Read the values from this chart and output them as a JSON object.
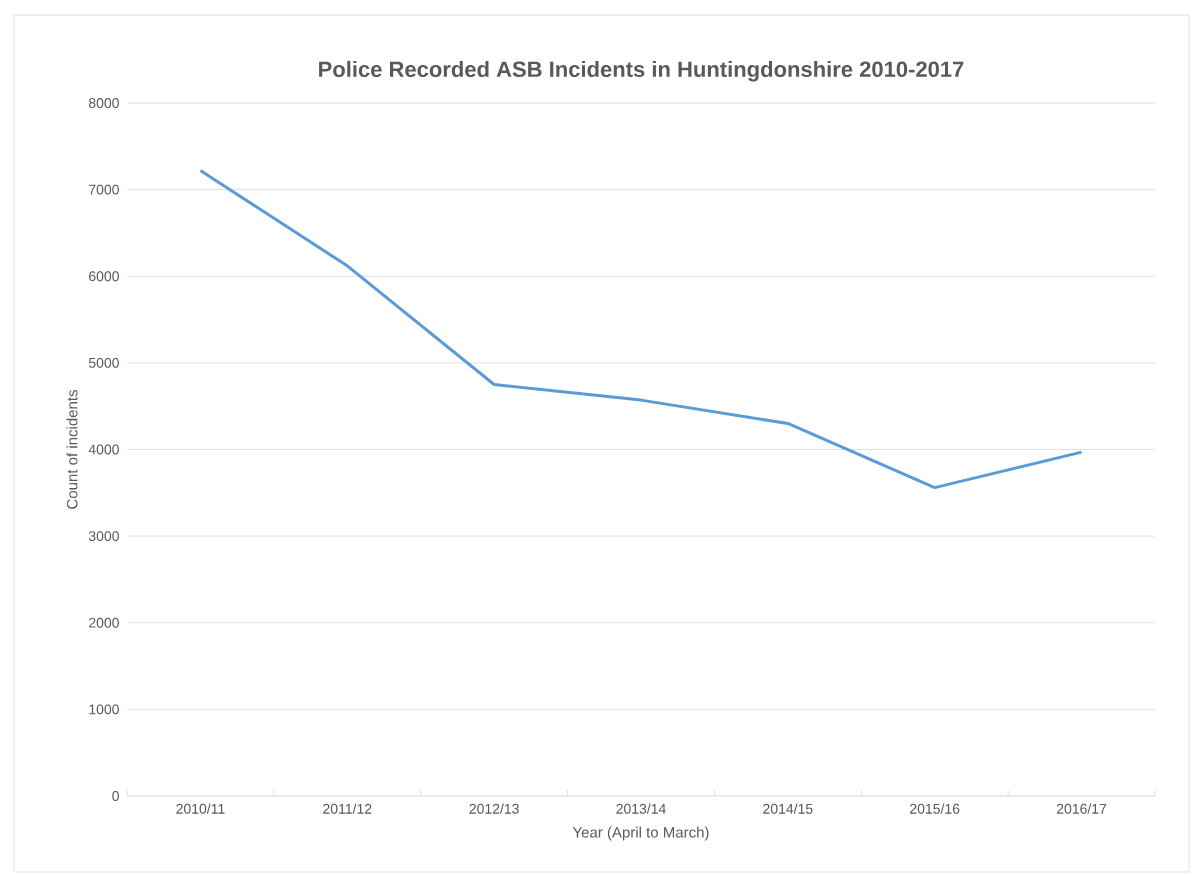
{
  "chart_data": {
    "type": "line",
    "title": "Police Recorded ASB Incidents in Huntingdonshire 2010-2017",
    "xlabel": "Year (April to March)",
    "ylabel": "Count of incidents",
    "categories": [
      "2010/11",
      "2011/12",
      "2012/13",
      "2013/14",
      "2014/15",
      "2015/16",
      "2016/17"
    ],
    "series": [
      {
        "color": "#5b9bd5",
        "values": [
          7220,
          6120,
          4750,
          4570,
          4300,
          3560,
          3970
        ]
      }
    ],
    "ylim": [
      0,
      8000
    ],
    "yticks": [
      0,
      1000,
      2000,
      3000,
      4000,
      5000,
      6000,
      7000,
      8000
    ],
    "grid": "y",
    "marker": "none",
    "line_style": "solid"
  }
}
